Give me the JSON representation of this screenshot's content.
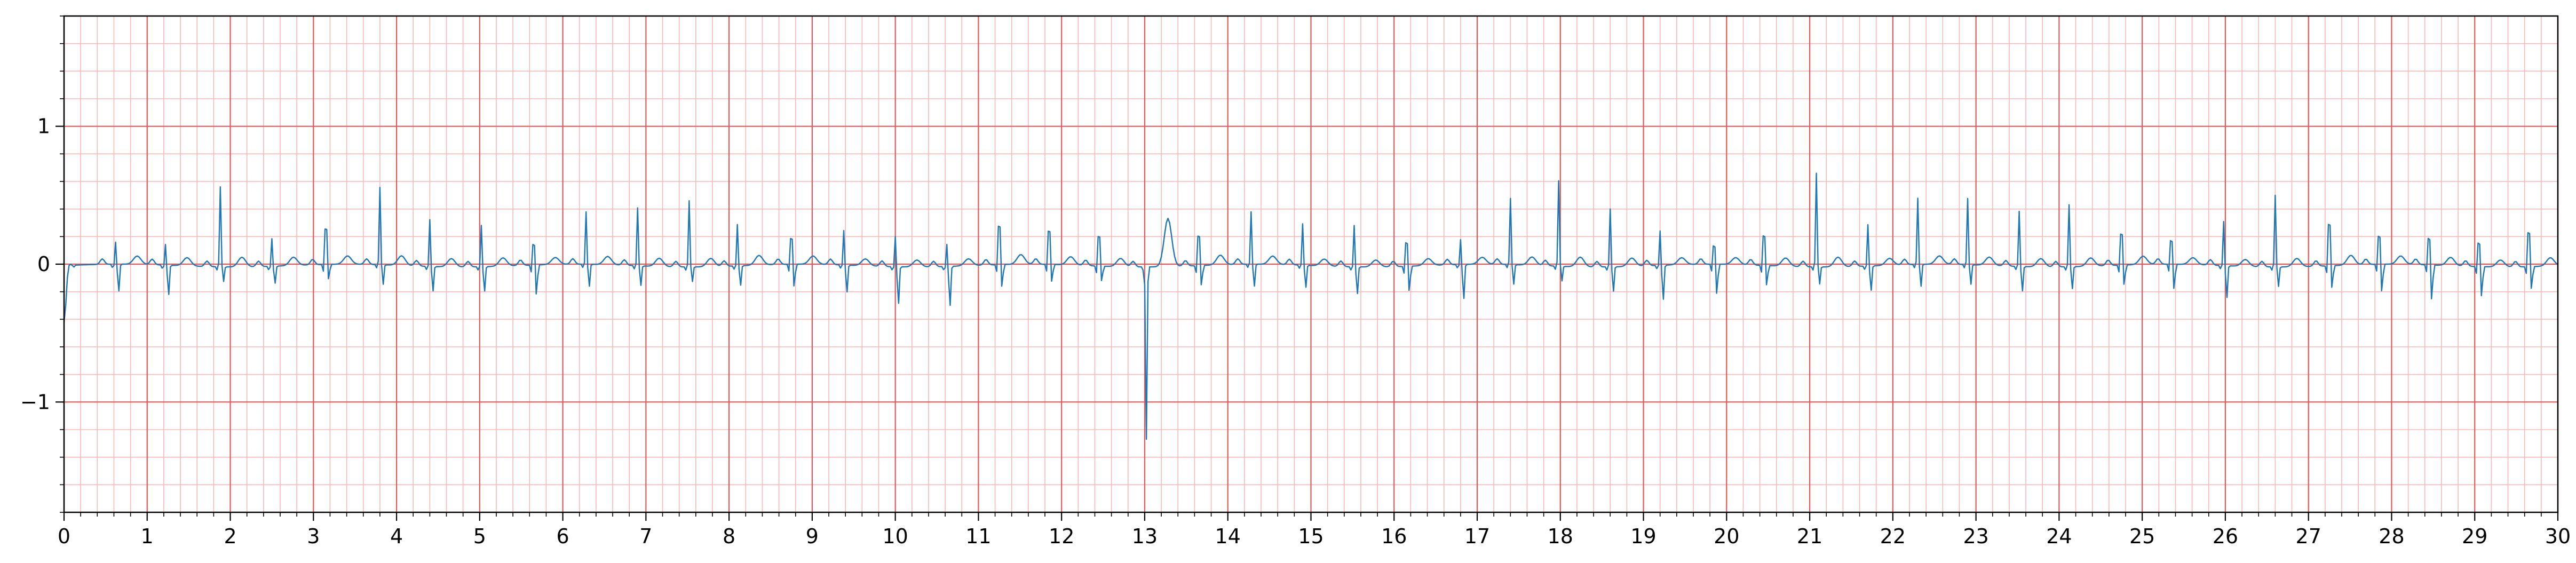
{
  "chart_data": {
    "type": "line",
    "title": "",
    "xlabel": "",
    "ylabel": "",
    "xlim": [
      0,
      30
    ],
    "ylim": [
      -1.8,
      1.8
    ],
    "grid": {
      "major_x_step": 1,
      "minor_x_step": 0.2,
      "major_y_step": 1,
      "minor_y_step": 0.2,
      "major_color": "#e15a5a",
      "minor_color": "#f7b8b8"
    },
    "x_ticks": [
      0,
      1,
      2,
      3,
      4,
      5,
      6,
      7,
      8,
      9,
      10,
      11,
      12,
      13,
      14,
      15,
      16,
      17,
      18,
      19,
      20,
      21,
      22,
      23,
      24,
      25,
      26,
      27,
      28,
      29,
      30
    ],
    "x_tick_labels": [
      "0",
      "1",
      "2",
      "3",
      "4",
      "5",
      "6",
      "7",
      "8",
      "9",
      "10",
      "11",
      "12",
      "13",
      "14",
      "15",
      "16",
      "17",
      "18",
      "19",
      "20",
      "21",
      "22",
      "23",
      "24",
      "25",
      "26",
      "27",
      "28",
      "29",
      "30"
    ],
    "y_ticks": [
      -1,
      0,
      1
    ],
    "y_tick_labels": [
      "−1",
      "0",
      "1"
    ],
    "series": [
      {
        "color": "#1f77b4",
        "sample_interval_s": 0.02,
        "start_values": [
          -0.42,
          -0.3,
          -0.1,
          -0.01,
          0.0,
          -0.01,
          -0.02
        ],
        "beat_times": [
          0.62,
          1.22,
          1.88,
          2.5,
          3.15,
          3.8,
          4.4,
          5.02,
          5.65,
          6.28,
          6.9,
          7.52,
          8.1,
          8.75,
          9.38,
          10.0,
          10.62,
          11.25,
          11.85,
          12.45,
          13.02,
          13.65,
          14.28,
          14.9,
          15.52,
          16.15,
          16.8,
          17.4,
          17.98,
          18.6,
          19.2,
          19.85,
          20.45,
          21.08,
          21.7,
          22.3,
          22.9,
          23.52,
          24.12,
          24.75,
          25.35,
          25.98,
          26.6,
          27.25,
          27.85,
          28.45,
          29.05,
          29.65
        ],
        "r_peaks": [
          0.16,
          0.15,
          0.58,
          0.2,
          0.48,
          0.56,
          0.34,
          0.3,
          0.28,
          0.38,
          0.42,
          0.48,
          0.3,
          0.35,
          0.25,
          0.22,
          0.16,
          0.52,
          0.45,
          0.4,
          -1.25,
          0.4,
          0.38,
          0.3,
          0.3,
          0.32,
          0.18,
          0.48,
          0.62,
          0.42,
          0.25,
          0.25,
          0.4,
          0.68,
          0.3,
          0.48,
          0.48,
          0.4,
          0.45,
          0.42,
          0.32,
          0.32,
          0.52,
          0.56,
          0.38,
          0.36,
          0.32,
          0.46
        ],
        "s_depths": [
          -0.22,
          -0.24,
          -0.12,
          -0.14,
          -0.12,
          -0.16,
          -0.2,
          -0.2,
          -0.24,
          -0.18,
          -0.16,
          -0.12,
          -0.16,
          -0.18,
          -0.22,
          -0.3,
          -0.32,
          -0.18,
          -0.14,
          -0.12,
          0.0,
          -0.16,
          -0.18,
          -0.18,
          -0.22,
          -0.2,
          -0.28,
          -0.16,
          -0.12,
          -0.2,
          -0.28,
          -0.24,
          -0.16,
          -0.14,
          -0.2,
          -0.18,
          -0.16,
          -0.2,
          -0.18,
          -0.16,
          -0.2,
          -0.26,
          -0.16,
          -0.18,
          -0.22,
          -0.28,
          -0.24,
          -0.18
        ],
        "t_heights": [
          0.06,
          0.06,
          0.07,
          0.06,
          0.06,
          0.07,
          0.06,
          0.06,
          0.05,
          0.06,
          0.06,
          0.06,
          0.07,
          0.06,
          0.05,
          0.05,
          0.05,
          0.07,
          0.06,
          0.06,
          0.35,
          0.07,
          0.06,
          0.05,
          0.05,
          0.05,
          0.05,
          0.06,
          0.07,
          0.06,
          0.05,
          0.05,
          0.06,
          0.07,
          0.05,
          0.06,
          0.06,
          0.06,
          0.06,
          0.06,
          0.05,
          0.05,
          0.06,
          0.07,
          0.06,
          0.06,
          0.05,
          0.06
        ]
      }
    ]
  }
}
